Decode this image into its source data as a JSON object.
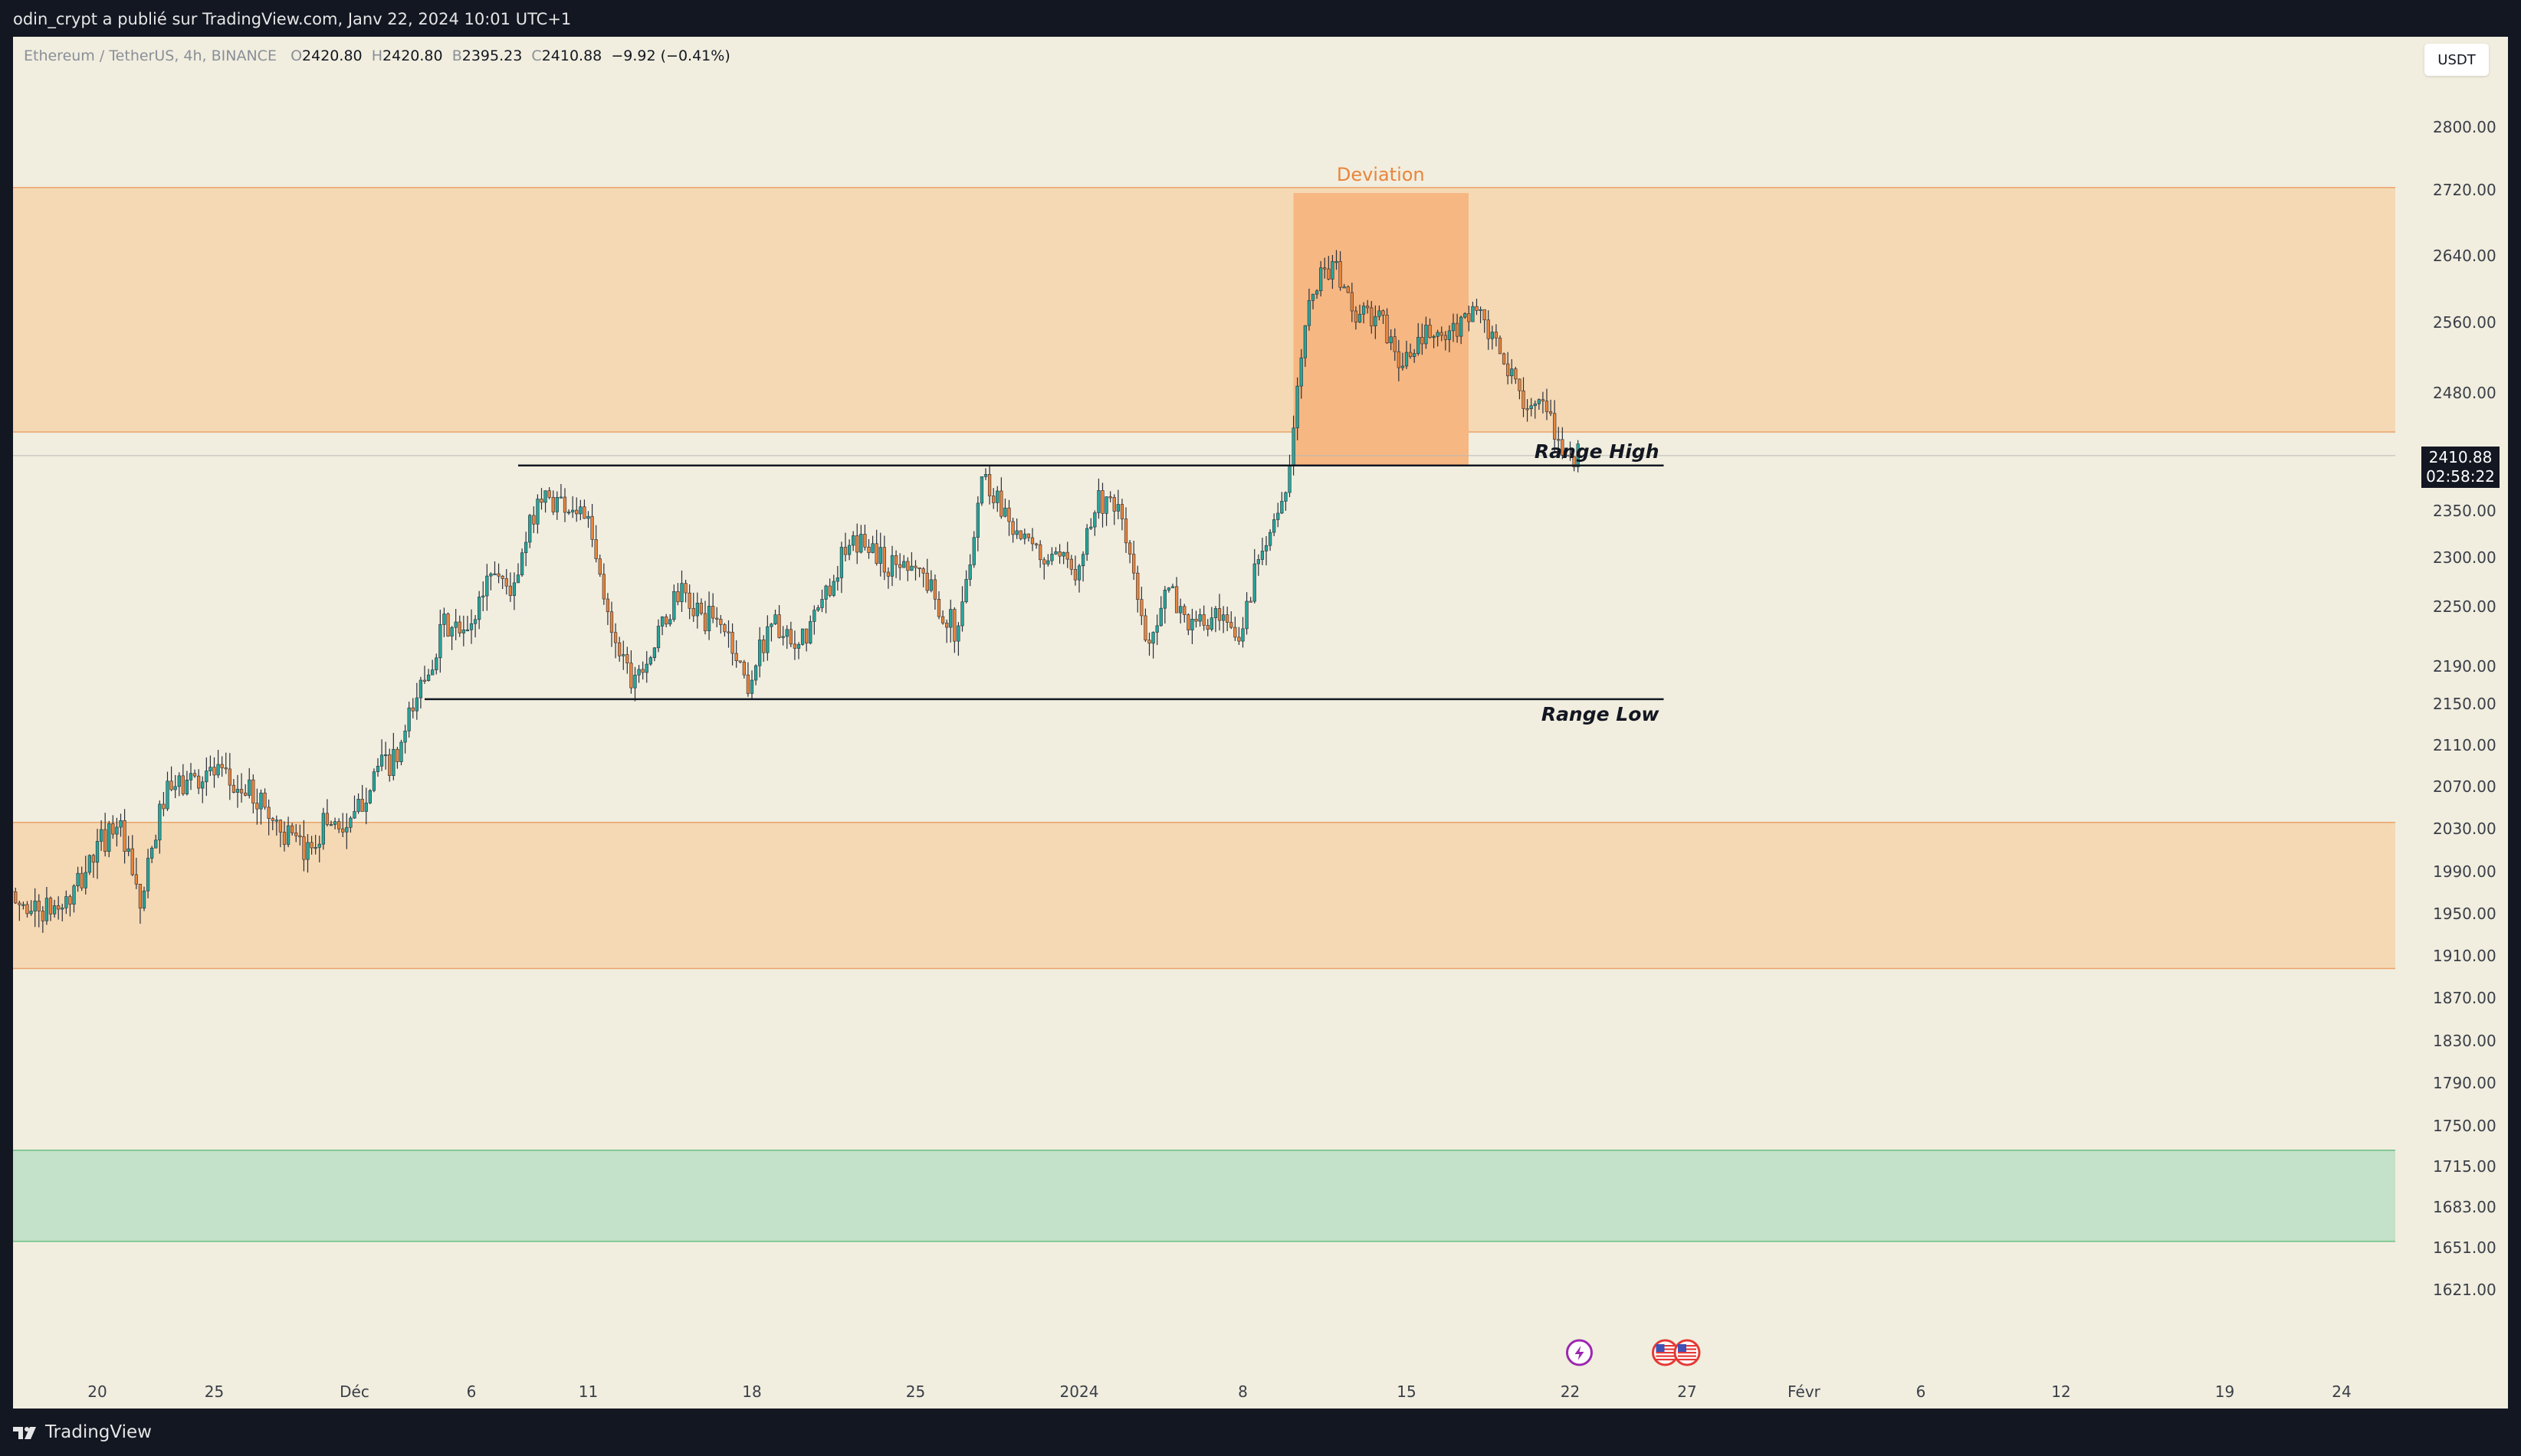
{
  "header": {
    "publish_info": "odin_crypt a publié sur TradingView.com, Janv 22, 2024 10:01 UTC+1"
  },
  "legend": {
    "symbol": "Ethereum / TetherUS, 4h, BINANCE",
    "open_label": "O",
    "open": "2420.80",
    "high_label": "H",
    "high": "2420.80",
    "low_label": "B",
    "low": "2395.23",
    "close_label": "C",
    "close": "2410.88",
    "change": "−9.92 (−0.41%)"
  },
  "currency": "USDT",
  "price_badge": {
    "price": "2410.88",
    "countdown": "02:58:22"
  },
  "footer": {
    "brand": "TradingView"
  },
  "colors": {
    "up": "#26a69a",
    "down": "#e8853d",
    "zone": "#f5d9b4",
    "deviation": "#f6b782",
    "demand": "#c4e1c9",
    "text": "#131722",
    "bg": "#f1eedf",
    "frame": "#131722"
  },
  "chart_data": {
    "type": "candlestick",
    "symbol": "Ethereum / TetherUS",
    "timeframe": "4h",
    "exchange": "BINANCE",
    "y_ticks": [
      2800,
      2720,
      2640,
      2560,
      2480,
      2350,
      2300,
      2250,
      2190,
      2150,
      2110,
      2070,
      2030,
      1990,
      1950,
      1910,
      1870,
      1830,
      1790,
      1750,
      1715,
      1683,
      1651,
      1621
    ],
    "y_tick_labels": [
      "2800.00",
      "2720.00",
      "2640.00",
      "2560.00",
      "2480.00",
      "2350.00",
      "2300.00",
      "2250.00",
      "2190.00",
      "2150.00",
      "2110.00",
      "2070.00",
      "2030.00",
      "1990.00",
      "1950.00",
      "1910.00",
      "1870.00",
      "1830.00",
      "1790.00",
      "1750.00",
      "1715.00",
      "1683.00",
      "1651.00",
      "1621.00"
    ],
    "x_ticks": [
      {
        "date": "2023-11-20",
        "label": "20"
      },
      {
        "date": "2023-11-25",
        "label": "25"
      },
      {
        "date": "2023-12-01",
        "label": "Déc"
      },
      {
        "date": "2023-12-06",
        "label": "6"
      },
      {
        "date": "2023-12-11",
        "label": "11"
      },
      {
        "date": "2023-12-18",
        "label": "18"
      },
      {
        "date": "2023-12-25",
        "label": "25"
      },
      {
        "date": "2024-01-01",
        "label": "2024"
      },
      {
        "date": "2024-01-08",
        "label": "8"
      },
      {
        "date": "2024-01-15",
        "label": "15"
      },
      {
        "date": "2024-01-22",
        "label": "22"
      },
      {
        "date": "2024-01-27",
        "label": "27"
      },
      {
        "date": "2024-02-01",
        "label": "Févr"
      },
      {
        "date": "2024-02-06",
        "label": "6"
      },
      {
        "date": "2024-02-12",
        "label": "12"
      },
      {
        "date": "2024-02-19",
        "label": "19"
      },
      {
        "date": "2024-02-24",
        "label": "24"
      }
    ],
    "x_range": [
      "2023-11-16",
      "2024-02-27"
    ],
    "price_path": [
      {
        "date": "2023-11-16",
        "price": 1965
      },
      {
        "date": "2023-11-17",
        "price": 1958
      },
      {
        "date": "2023-11-18",
        "price": 1952
      },
      {
        "date": "2023-11-19",
        "price": 1962
      },
      {
        "date": "2023-11-20",
        "price": 2005
      },
      {
        "date": "2023-11-21",
        "price": 2040
      },
      {
        "date": "2023-11-22",
        "price": 1955
      },
      {
        "date": "2023-11-23",
        "price": 2060
      },
      {
        "date": "2023-11-24",
        "price": 2075
      },
      {
        "date": "2023-11-25",
        "price": 2085
      },
      {
        "date": "2023-11-26",
        "price": 2070
      },
      {
        "date": "2023-11-27",
        "price": 2060
      },
      {
        "date": "2023-11-28",
        "price": 2030
      },
      {
        "date": "2023-11-29",
        "price": 2005
      },
      {
        "date": "2023-11-30",
        "price": 2040
      },
      {
        "date": "2023-12-01",
        "price": 2030
      },
      {
        "date": "2023-12-02",
        "price": 2085
      },
      {
        "date": "2023-12-03",
        "price": 2095
      },
      {
        "date": "2023-12-04",
        "price": 2170
      },
      {
        "date": "2023-12-05",
        "price": 2230
      },
      {
        "date": "2023-12-06",
        "price": 2220
      },
      {
        "date": "2023-12-07",
        "price": 2290
      },
      {
        "date": "2023-12-08",
        "price": 2265
      },
      {
        "date": "2023-12-09",
        "price": 2365
      },
      {
        "date": "2023-12-10",
        "price": 2360
      },
      {
        "date": "2023-12-11",
        "price": 2350
      },
      {
        "date": "2023-12-12",
        "price": 2240
      },
      {
        "date": "2023-12-13",
        "price": 2180
      },
      {
        "date": "2023-12-14",
        "price": 2210
      },
      {
        "date": "2023-12-15",
        "price": 2265
      },
      {
        "date": "2023-12-16",
        "price": 2240
      },
      {
        "date": "2023-12-17",
        "price": 2230
      },
      {
        "date": "2023-12-18",
        "price": 2170
      },
      {
        "date": "2023-12-19",
        "price": 2240
      },
      {
        "date": "2023-12-20",
        "price": 2200
      },
      {
        "date": "2023-12-21",
        "price": 2245
      },
      {
        "date": "2023-12-22",
        "price": 2300
      },
      {
        "date": "2023-12-23",
        "price": 2320
      },
      {
        "date": "2023-12-24",
        "price": 2290
      },
      {
        "date": "2023-12-25",
        "price": 2300
      },
      {
        "date": "2023-12-26",
        "price": 2260
      },
      {
        "date": "2023-12-27",
        "price": 2220
      },
      {
        "date": "2023-12-28",
        "price": 2390
      },
      {
        "date": "2023-12-29",
        "price": 2350
      },
      {
        "date": "2023-12-30",
        "price": 2310
      },
      {
        "date": "2023-12-31",
        "price": 2295
      },
      {
        "date": "2024-01-01",
        "price": 2290
      },
      {
        "date": "2024-01-02",
        "price": 2365
      },
      {
        "date": "2024-01-03",
        "price": 2340
      },
      {
        "date": "2024-01-04",
        "price": 2215
      },
      {
        "date": "2024-01-05",
        "price": 2265
      },
      {
        "date": "2024-01-06",
        "price": 2230
      },
      {
        "date": "2024-01-07",
        "price": 2235
      },
      {
        "date": "2024-01-08",
        "price": 2215
      },
      {
        "date": "2024-01-09",
        "price": 2320
      },
      {
        "date": "2024-01-10",
        "price": 2360
      },
      {
        "date": "2024-01-11",
        "price": 2600
      },
      {
        "date": "2024-01-12",
        "price": 2630
      },
      {
        "date": "2024-01-13",
        "price": 2570
      },
      {
        "date": "2024-01-14",
        "price": 2565
      },
      {
        "date": "2024-01-15",
        "price": 2510
      },
      {
        "date": "2024-01-16",
        "price": 2545
      },
      {
        "date": "2024-01-17",
        "price": 2540
      },
      {
        "date": "2024-01-18",
        "price": 2580
      },
      {
        "date": "2024-01-19",
        "price": 2530
      },
      {
        "date": "2024-01-20",
        "price": 2480
      },
      {
        "date": "2024-01-21",
        "price": 2460
      },
      {
        "date": "2024-01-22",
        "price": 2411
      }
    ],
    "zones": [
      {
        "type": "supply",
        "top": 2723,
        "bottom": 2437
      },
      {
        "type": "demand",
        "top": 2036,
        "bottom": 1898
      },
      {
        "type": "demand-strong",
        "top": 1729,
        "bottom": 1656
      }
    ],
    "deviation_box": {
      "start": "2024-01-10",
      "end": "2024-01-17",
      "top": 2720,
      "bottom": 2400,
      "label": "Deviation"
    },
    "range_high": {
      "price": 2400,
      "start": "2023-12-08",
      "end": "2024-01-26",
      "label": "Range High"
    },
    "range_low": {
      "price": 2155,
      "start": "2023-12-04",
      "end": "2024-01-26",
      "label": "Range Low"
    },
    "last_price": 2410.88,
    "events": [
      {
        "date": "2024-01-22",
        "icon": "lightning-icon"
      },
      {
        "date": "2024-01-26",
        "icon": "us-flag-icon"
      },
      {
        "date": "2024-01-27",
        "icon": "us-flag-icon"
      }
    ]
  }
}
